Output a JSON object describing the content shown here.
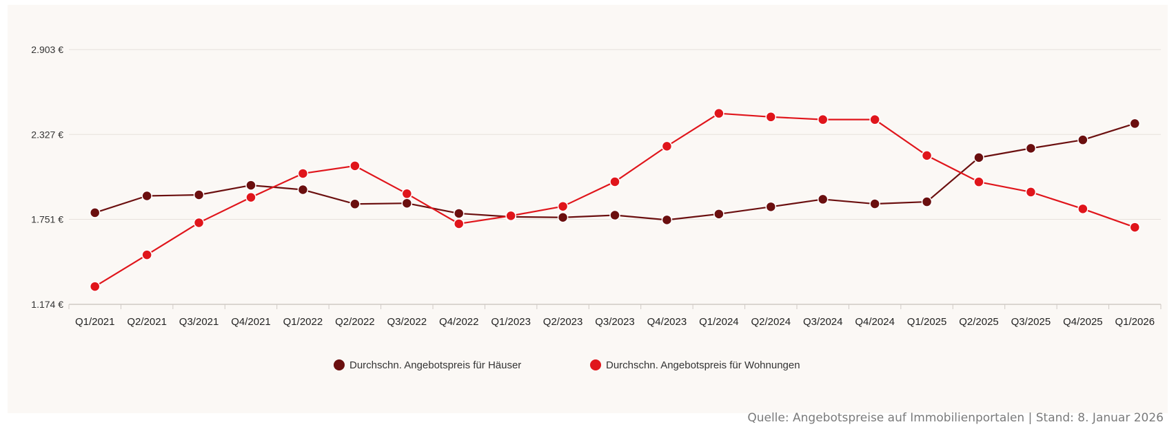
{
  "chart_data": {
    "type": "line",
    "categories": [
      "Q1/2021",
      "Q2/2021",
      "Q3/2021",
      "Q4/2021",
      "Q1/2022",
      "Q2/2022",
      "Q3/2022",
      "Q4/2022",
      "Q1/2023",
      "Q2/2023",
      "Q3/2023",
      "Q4/2023",
      "Q1/2024",
      "Q2/2024",
      "Q3/2024",
      "Q4/2024",
      "Q1/2025",
      "Q2/2025",
      "Q3/2025",
      "Q4/2025",
      "Q1/2026"
    ],
    "y_ticks": [
      {
        "value": 1174,
        "label": "1.174 €"
      },
      {
        "value": 1751,
        "label": "1.751 €"
      },
      {
        "value": 2327,
        "label": "2.327 €"
      },
      {
        "value": 2903,
        "label": "2.903 €"
      }
    ],
    "ylim": [
      1174,
      3060
    ],
    "grid": "horizontal",
    "legend_position": "bottom-center",
    "series": [
      {
        "name": "Durchschn. Angebotspreis für Häuser",
        "color": "#6b0f0f",
        "values": [
          1796,
          1910,
          1917,
          1982,
          1952,
          1855,
          1860,
          1791,
          1768,
          1764,
          1779,
          1747,
          1787,
          1836,
          1887,
          1856,
          1870,
          2170,
          2233,
          2290,
          2401
        ]
      },
      {
        "name": "Durchschn. Angebotspreis für Wohnungen",
        "color": "#e0151b",
        "values": [
          1295,
          1510,
          1728,
          1900,
          2062,
          2114,
          1925,
          1721,
          1775,
          1839,
          2006,
          2247,
          2470,
          2446,
          2428,
          2428,
          2184,
          2005,
          1936,
          1822,
          1697
        ]
      }
    ]
  },
  "source_note": "Quelle: Angebotspreise auf Immobilienportalen | Stand: 8. Januar 2026"
}
